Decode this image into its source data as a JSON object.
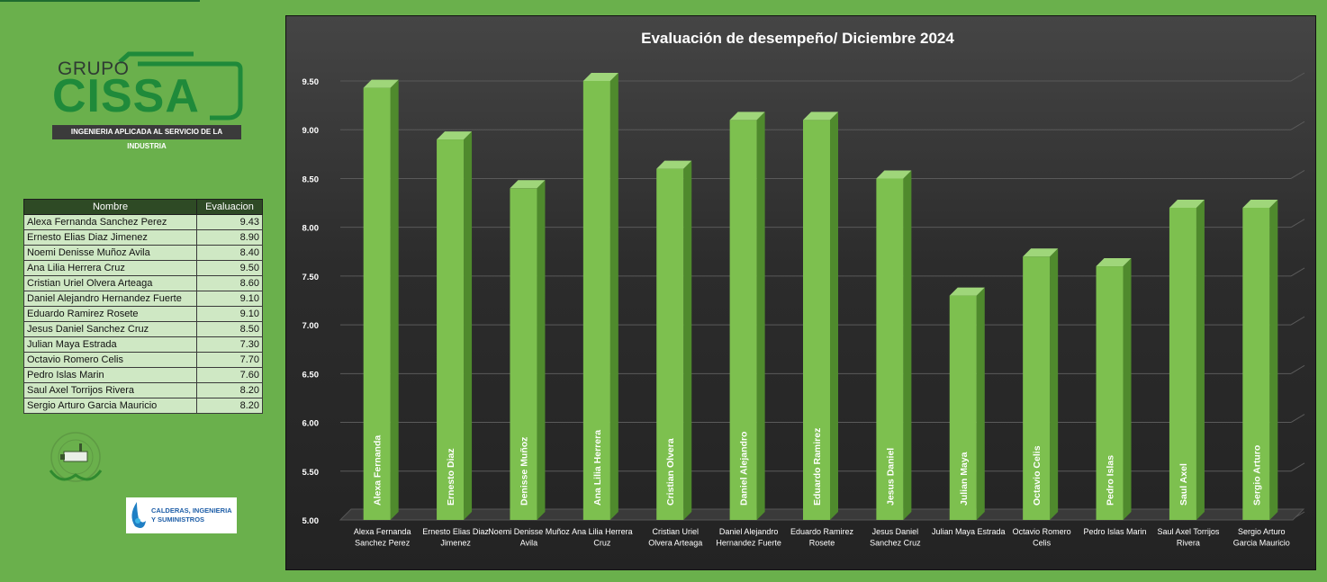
{
  "company": {
    "group": "GRUPO",
    "name": "CISSA",
    "tagline": "INGENIERIA APLICADA AL SERVICIO DE LA INDUSTRIA"
  },
  "badge": {
    "line1": "CALDERAS, INGENIERIA",
    "line2": "Y SUMINISTROS"
  },
  "table": {
    "headers": [
      "Nombre",
      "Evaluacion"
    ],
    "rows": [
      [
        "Alexa Fernanda Sanchez Perez",
        "9.43"
      ],
      [
        "Ernesto Elias Diaz Jimenez",
        "8.90"
      ],
      [
        "Noemi Denisse Muñoz Avila",
        "8.40"
      ],
      [
        "Ana Lilia Herrera Cruz",
        "9.50"
      ],
      [
        "Cristian Uriel Olvera Arteaga",
        "8.60"
      ],
      [
        "Daniel Alejandro Hernandez Fuerte",
        "9.10"
      ],
      [
        "Eduardo Ramirez Rosete",
        "9.10"
      ],
      [
        "Jesus Daniel Sanchez Cruz",
        "8.50"
      ],
      [
        "Julian Maya Estrada",
        "7.30"
      ],
      [
        "Octavio Romero Celis",
        "7.70"
      ],
      [
        "Pedro Islas Marin",
        "7.60"
      ],
      [
        "Saul Axel Torrijos Rivera",
        "8.20"
      ],
      [
        "Sergio Arturo Garcia Mauricio",
        "8.20"
      ]
    ]
  },
  "chart_data": {
    "type": "bar",
    "title": "Evaluación de desempeño/ Diciembre 2024",
    "categories": [
      "Alexa Fernanda Sanchez Perez",
      "Ernesto Elias Diaz Jimenez",
      "Noemi Denisse Muñoz Avila",
      "Ana Lilia Herrera Cruz",
      "Cristian Uriel Olvera Arteaga",
      "Daniel Alejandro Hernandez Fuerte",
      "Eduardo Ramirez Rosete",
      "Jesus Daniel Sanchez Cruz",
      "Julian Maya Estrada",
      "Octavio Romero Celis",
      "Pedro Islas Marin",
      "Saul Axel Torrijos Rivera",
      "Sergio Arturo Garcia Mauricio"
    ],
    "bar_labels": [
      "Alexa Fernanda",
      "Ernesto Diaz",
      "Denisse Muñoz",
      "Ana Lilia Herrera",
      "Cristian Olvera",
      "Daniel Alejandro",
      "Eduardo Ramirez",
      "Jesus Daniel",
      "Julian Maya",
      "Octavio Celis",
      "Pedro Islas",
      "Saul Axel",
      "Sergio Arturo"
    ],
    "values": [
      9.43,
      8.9,
      8.4,
      9.5,
      8.6,
      9.1,
      9.1,
      8.5,
      7.3,
      7.7,
      7.6,
      8.2,
      8.2
    ],
    "yticks": [
      "5.00",
      "5.50",
      "6.00",
      "6.50",
      "7.00",
      "7.50",
      "8.00",
      "8.50",
      "9.00",
      "9.50"
    ],
    "ylim": [
      5,
      9.5
    ],
    "grid": true,
    "colors": {
      "bar": "#7dc04f",
      "bar_side": "#4f8a2d",
      "bar_top": "#9fd67a",
      "grid": "#5a5a5a",
      "text": "#ffffff"
    }
  }
}
